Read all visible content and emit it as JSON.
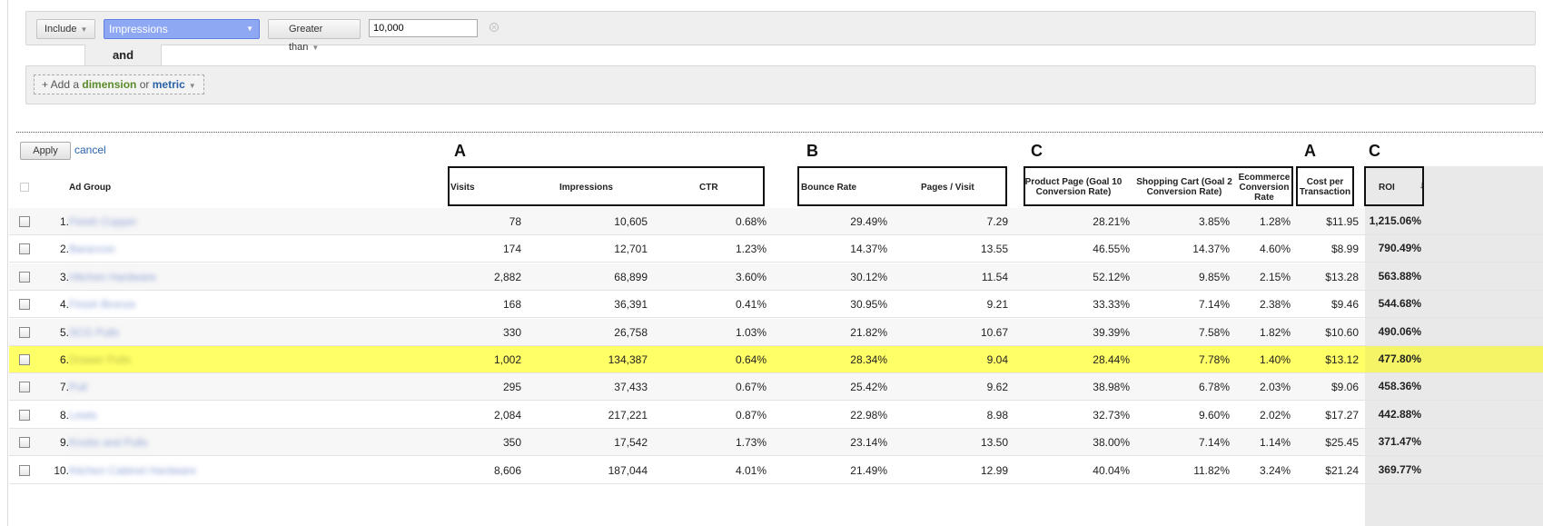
{
  "filter": {
    "include_label": "Include",
    "dimension": "Impressions",
    "operator": "Greater than",
    "value": "10,000",
    "and_label": "and",
    "add_prefix": "+ Add a ",
    "add_dimension": "dimension",
    "add_or": " or ",
    "add_metric": "metric"
  },
  "actions": {
    "apply": "Apply",
    "cancel": "cancel"
  },
  "group_labels": [
    "A",
    "B",
    "C",
    "A",
    "C"
  ],
  "table": {
    "columns": [
      "Ad Group",
      "Visits",
      "Impressions",
      "CTR",
      "Bounce Rate",
      "Pages / Visit",
      "Product Page (Goal 10 Conversion Rate)",
      "Shopping Cart (Goal 2 Conversion Rate)",
      "Ecommerce Conversion Rate",
      "Cost per Transaction",
      "ROI"
    ],
    "rows": [
      {
        "idx": "1.",
        "ad_group": "Finish Copper",
        "visits": "78",
        "impressions": "10,605",
        "ctr": "0.68%",
        "bounce": "29.49%",
        "pages": "7.29",
        "product": "28.21%",
        "cart": "3.85%",
        "ecom": "1.28%",
        "cost": "$11.95",
        "roi": "1,215.06%"
      },
      {
        "idx": "2.",
        "ad_group": "Baraccon",
        "visits": "174",
        "impressions": "12,701",
        "ctr": "1.23%",
        "bounce": "14.37%",
        "pages": "13.55",
        "product": "46.55%",
        "cart": "14.37%",
        "ecom": "4.60%",
        "cost": "$8.99",
        "roi": "790.49%"
      },
      {
        "idx": "3.",
        "ad_group": "Hitchen Hardware",
        "visits": "2,882",
        "impressions": "68,899",
        "ctr": "3.60%",
        "bounce": "30.12%",
        "pages": "11.54",
        "product": "52.12%",
        "cart": "9.85%",
        "ecom": "2.15%",
        "cost": "$13.28",
        "roi": "563.88%"
      },
      {
        "idx": "4.",
        "ad_group": "Finish Bronze",
        "visits": "168",
        "impressions": "36,391",
        "ctr": "0.41%",
        "bounce": "30.95%",
        "pages": "9.21",
        "product": "33.33%",
        "cart": "7.14%",
        "ecom": "2.38%",
        "cost": "$9.46",
        "roi": "544.68%"
      },
      {
        "idx": "5.",
        "ad_group": "SCG Pulls",
        "visits": "330",
        "impressions": "26,758",
        "ctr": "1.03%",
        "bounce": "21.82%",
        "pages": "10.67",
        "product": "39.39%",
        "cart": "7.58%",
        "ecom": "1.82%",
        "cost": "$10.60",
        "roi": "490.06%"
      },
      {
        "idx": "6.",
        "ad_group": "Drawer Pulls",
        "visits": "1,002",
        "impressions": "134,387",
        "ctr": "0.64%",
        "bounce": "28.34%",
        "pages": "9.04",
        "product": "28.44%",
        "cart": "7.78%",
        "ecom": "1.40%",
        "cost": "$13.12",
        "roi": "477.80%"
      },
      {
        "idx": "7.",
        "ad_group": "Pull",
        "visits": "295",
        "impressions": "37,433",
        "ctr": "0.67%",
        "bounce": "25.42%",
        "pages": "9.62",
        "product": "38.98%",
        "cart": "6.78%",
        "ecom": "2.03%",
        "cost": "$9.06",
        "roi": "458.36%"
      },
      {
        "idx": "8.",
        "ad_group": "Lewis",
        "visits": "2,084",
        "impressions": "217,221",
        "ctr": "0.87%",
        "bounce": "22.98%",
        "pages": "8.98",
        "product": "32.73%",
        "cart": "9.60%",
        "ecom": "2.02%",
        "cost": "$17.27",
        "roi": "442.88%"
      },
      {
        "idx": "9.",
        "ad_group": "Knobs and Pulls",
        "visits": "350",
        "impressions": "17,542",
        "ctr": "1.73%",
        "bounce": "23.14%",
        "pages": "13.50",
        "product": "38.00%",
        "cart": "7.14%",
        "ecom": "1.14%",
        "cost": "$25.45",
        "roi": "371.47%"
      },
      {
        "idx": "10.",
        "ad_group": "Kitchen Cabinet Hardware",
        "visits": "8,606",
        "impressions": "187,044",
        "ctr": "4.01%",
        "bounce": "21.49%",
        "pages": "12.99",
        "product": "40.04%",
        "cart": "11.82%",
        "ecom": "3.24%",
        "cost": "$21.24",
        "roi": "369.77%"
      }
    ]
  },
  "highlight_color": "#ffff66"
}
